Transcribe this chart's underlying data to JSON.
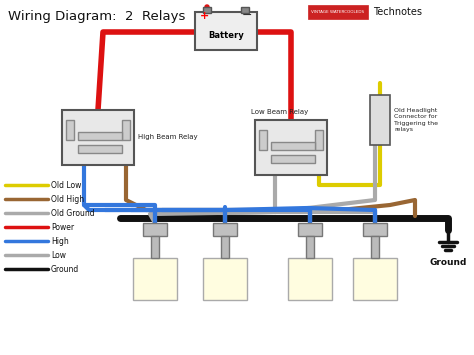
{
  "title": "Wiring Diagram:  2  Relays",
  "technotes": "Technotes",
  "bg_color": "#ffffff",
  "wire_colors": {
    "red": "#dd1111",
    "blue": "#3377dd",
    "gray": "#aaaaaa",
    "brown": "#996633",
    "black": "#111111",
    "yellow": "#ddcc00"
  },
  "legend_items": [
    {
      "label": "Old Low",
      "color": "#ddcc00"
    },
    {
      "label": "Old High",
      "color": "#996633"
    },
    {
      "label": "Old Ground",
      "color": "#aaaaaa"
    },
    {
      "label": "Power",
      "color": "#dd1111"
    },
    {
      "label": "High",
      "color": "#3377dd"
    },
    {
      "label": "Low",
      "color": "#aaaaaa"
    },
    {
      "label": "Ground",
      "color": "#111111"
    }
  ],
  "battery_label": "Battery",
  "ground_label": "Ground",
  "old_headlight_label": "Old Headlight\nConnector for\nTriggering the\nrelays",
  "hbr_label": "High Beam Relay",
  "lbr_label": "Low Beam Relay"
}
